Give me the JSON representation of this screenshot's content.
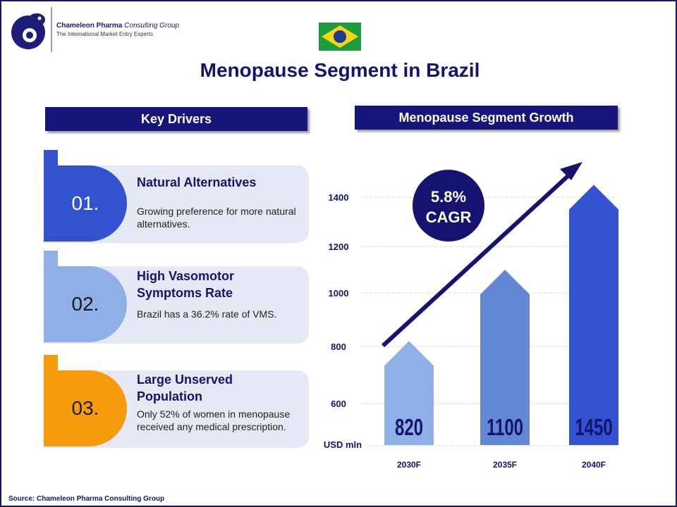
{
  "brand": {
    "company_bold": "Chameleon Pharma",
    "company_italic": "Consulting Group",
    "tagline": "The International Market Entry Experts"
  },
  "title": "Menopause Segment in Brazil",
  "left_header": "Key Drivers",
  "right_header": "Menopause Segment Growth",
  "drivers": [
    {
      "num": "01.",
      "title": "Natural Alternatives",
      "desc": "Growing preference for more natural alternatives.",
      "color": "#3352d1"
    },
    {
      "num": "02.",
      "title": "High Vasomotor Symptoms Rate",
      "desc": "Brazil has a 36.2% rate of VMS.",
      "color": "#8fb0e6"
    },
    {
      "num": "03.",
      "title": "Large Unserved Population",
      "desc": "Only 52% of women in menopause received any medical prescription.",
      "color": "#f59b0c"
    }
  ],
  "source": "Source: Chameleon Pharma Consulting Group",
  "chart_data": {
    "type": "bar",
    "categories": [
      "2030F",
      "2035F",
      "2040F"
    ],
    "values": [
      820,
      1100,
      1450
    ],
    "ylabel": "USD mln",
    "yticks": [
      600,
      800,
      1000,
      1200,
      1400
    ],
    "grid": true,
    "bar_colors": [
      "#8fb0e6",
      "#6288d4",
      "#3352d1"
    ],
    "annotation": {
      "value": "5.8%",
      "label": "CAGR"
    }
  }
}
